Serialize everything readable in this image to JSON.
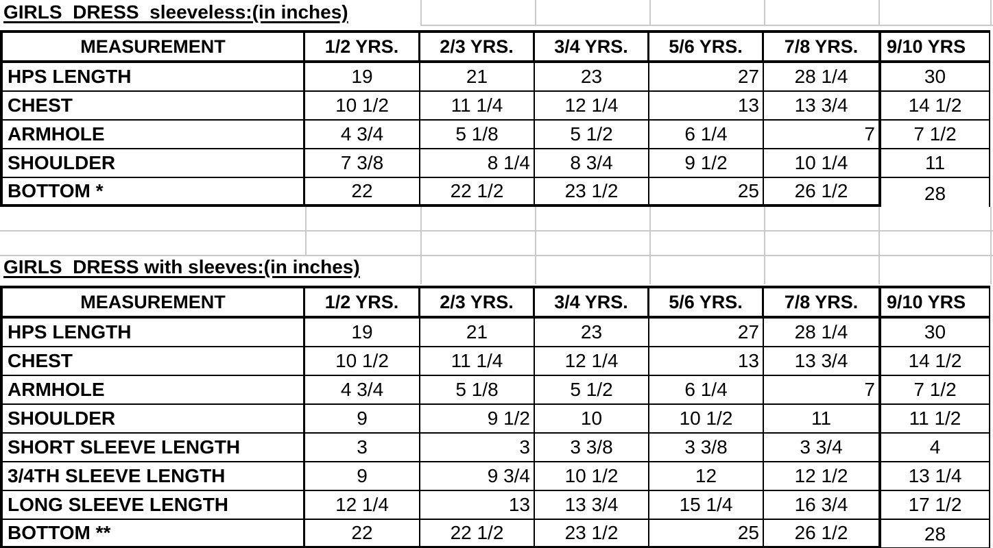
{
  "sheet": {
    "background": "#ffffff",
    "gridline_color": "#c9c9c9",
    "border_color": "#000000",
    "text_color": "#000000"
  },
  "tables": [
    {
      "title": "GIRLS  DRESS  sleeveless:(in inches)",
      "headers": [
        "MEASUREMENT",
        "1/2 YRS.",
        "2/3 YRS.",
        "3/4 YRS.",
        "5/6 YRS.",
        "7/8 YRS.",
        "9/10 YRS"
      ],
      "rows": [
        {
          "label": "HPS LENGTH",
          "values": [
            "19",
            "21",
            "23",
            "27",
            "28 1/4",
            "30"
          ],
          "align": [
            "c",
            "c",
            "c",
            "r",
            "c",
            "c"
          ]
        },
        {
          "label": "CHEST",
          "values": [
            "10 1/2",
            "11 1/4",
            "12 1/4",
            "13",
            "13 3/4",
            "14 1/2"
          ],
          "align": [
            "c",
            "c",
            "c",
            "r",
            "c",
            "c"
          ]
        },
        {
          "label": "ARMHOLE",
          "values": [
            "4 3/4",
            "5 1/8",
            "5 1/2",
            "6 1/4",
            "7",
            "7 1/2"
          ],
          "align": [
            "c",
            "c",
            "c",
            "c",
            "r",
            "c"
          ]
        },
        {
          "label": "SHOULDER",
          "values": [
            "7 3/8",
            "8 1/4",
            "8 3/4",
            "9 1/2",
            "10 1/4",
            "11"
          ],
          "align": [
            "c",
            "r",
            "c",
            "c",
            "c",
            "c"
          ]
        },
        {
          "label": "BOTTOM *",
          "values": [
            "22",
            "22 1/2",
            "23 1/2",
            "25",
            "26 1/2",
            "28"
          ],
          "align": [
            "c",
            "c",
            "c",
            "r",
            "c",
            "c"
          ]
        }
      ]
    },
    {
      "title": "GIRLS  DRESS with sleeves:(in inches)",
      "headers": [
        "MEASUREMENT",
        "1/2 YRS.",
        "2/3 YRS.",
        "3/4 YRS.",
        "5/6 YRS.",
        "7/8 YRS.",
        "9/10 YRS"
      ],
      "rows": [
        {
          "label": "HPS LENGTH",
          "values": [
            "19",
            "21",
            "23",
            "27",
            "28 1/4",
            "30"
          ],
          "align": [
            "c",
            "c",
            "c",
            "r",
            "c",
            "c"
          ]
        },
        {
          "label": "CHEST",
          "values": [
            "10 1/2",
            "11 1/4",
            "12 1/4",
            "13",
            "13 3/4",
            "14 1/2"
          ],
          "align": [
            "c",
            "c",
            "c",
            "r",
            "c",
            "c"
          ]
        },
        {
          "label": "ARMHOLE",
          "values": [
            "4 3/4",
            "5 1/8",
            "5 1/2",
            "6 1/4",
            "7",
            "7 1/2"
          ],
          "align": [
            "c",
            "c",
            "c",
            "c",
            "r",
            "c"
          ]
        },
        {
          "label": "SHOULDER",
          "values": [
            "9",
            "9 1/2",
            "10",
            "10 1/2",
            "11",
            "11 1/2"
          ],
          "align": [
            "c",
            "r",
            "c",
            "c",
            "c",
            "c"
          ]
        },
        {
          "label": "SHORT SLEEVE LENGTH",
          "values": [
            "3",
            "3",
            "3 3/8",
            "3 3/8",
            "3 3/4",
            "4"
          ],
          "align": [
            "c",
            "r",
            "c",
            "c",
            "c",
            "c"
          ]
        },
        {
          "label": "3/4TH SLEEVE LENGTH",
          "values": [
            "9",
            "9 3/4",
            "10 1/2",
            "12",
            "12 1/2",
            "13 1/4"
          ],
          "align": [
            "c",
            "r",
            "c",
            "c",
            "c",
            "c"
          ]
        },
        {
          "label": "LONG SLEEVE LENGTH",
          "values": [
            "12 1/4",
            "13",
            "13 3/4",
            "15 1/4",
            "16 3/4",
            "17 1/2"
          ],
          "align": [
            "c",
            "r",
            "c",
            "c",
            "c",
            "c"
          ]
        },
        {
          "label": "BOTTOM **",
          "values": [
            "22",
            "22 1/2",
            "23 1/2",
            "25",
            "26 1/2",
            "28"
          ],
          "align": [
            "c",
            "c",
            "c",
            "r",
            "c",
            "c"
          ]
        }
      ]
    }
  ]
}
